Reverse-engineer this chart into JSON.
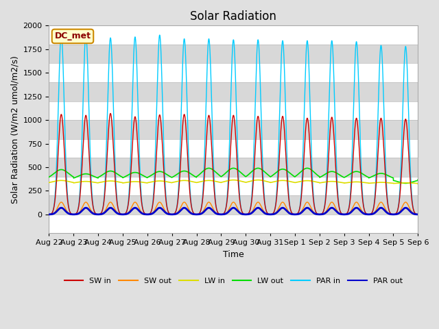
{
  "title": "Solar Radiation",
  "ylabel": "Solar Radiation (W/m2 umol/m2/s)",
  "xlabel": "Time",
  "ylim": [
    -200,
    2000
  ],
  "annotation": "DC_met",
  "x_tick_labels": [
    "Aug 22",
    "Aug 23",
    "Aug 24",
    "Aug 25",
    "Aug 26",
    "Aug 27",
    "Aug 28",
    "Aug 29",
    "Aug 30",
    "Aug 31",
    "Sep 1",
    "Sep 2",
    "Sep 3",
    "Sep 4",
    "Sep 5",
    "Sep 6"
  ],
  "n_days": 15,
  "series": {
    "SW_in": {
      "color": "#cc0000",
      "label": "SW in"
    },
    "SW_out": {
      "color": "#ff8800",
      "label": "SW out"
    },
    "LW_in": {
      "color": "#dddd00",
      "label": "LW in"
    },
    "LW_out": {
      "color": "#00dd00",
      "label": "LW out"
    },
    "PAR_in": {
      "color": "#00ccff",
      "label": "PAR in"
    },
    "PAR_out": {
      "color": "#0000cc",
      "label": "PAR out"
    }
  },
  "bg_color": "#e0e0e0",
  "plot_bg_light": "#ffffff",
  "plot_bg_dark": "#d8d8d8",
  "grid_color": "#cccccc",
  "title_fontsize": 12,
  "label_fontsize": 9,
  "tick_fontsize": 8,
  "band_edges": [
    -200,
    0,
    200,
    400,
    600,
    800,
    1000,
    1200,
    1400,
    1600,
    1800,
    2000
  ]
}
